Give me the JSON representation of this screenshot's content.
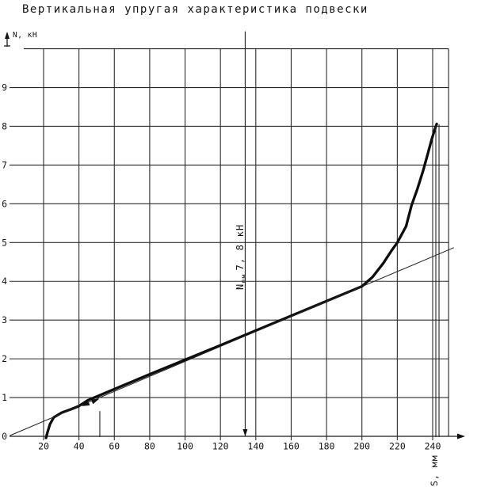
{
  "colors": {
    "ink": "#141414",
    "background": "#ffffff"
  },
  "chart_data": {
    "type": "line",
    "title": "Вертикальная   упругая характеристика подвески",
    "xlabel": "S, мм",
    "ylabel": "N, кН",
    "xlim": [
      0,
      250
    ],
    "ylim": [
      0,
      10
    ],
    "grid": true,
    "x_ticks": [
      20,
      40,
      60,
      80,
      100,
      120,
      140,
      160,
      180,
      200,
      220,
      240
    ],
    "y_ticks": [
      0,
      1,
      2,
      3,
      4,
      5,
      6,
      7,
      8,
      9
    ],
    "series": [
      {
        "name": "elastic-characteristic",
        "style": "thick",
        "points": [
          [
            21.4,
            -0.04
          ],
          [
            22.2,
            0.1
          ],
          [
            23.6,
            0.31
          ],
          [
            25.8,
            0.49
          ],
          [
            30.3,
            0.61
          ],
          [
            35.7,
            0.7
          ],
          [
            40,
            0.78
          ],
          [
            45,
            0.93
          ],
          [
            80,
            1.6
          ],
          [
            120,
            2.35
          ],
          [
            160,
            3.11
          ],
          [
            200,
            3.87
          ],
          [
            206,
            4.11
          ],
          [
            212,
            4.46
          ],
          [
            217,
            4.81
          ],
          [
            220,
            5.0
          ],
          [
            225,
            5.42
          ],
          [
            228,
            5.95
          ],
          [
            231.5,
            6.4
          ],
          [
            234.6,
            6.85
          ],
          [
            237.3,
            7.3
          ],
          [
            239.5,
            7.67
          ],
          [
            241.3,
            7.93
          ],
          [
            242.3,
            8.06
          ]
        ]
      },
      {
        "name": "linear-characteristic",
        "style": "thin",
        "points": [
          [
            1,
            0.02
          ],
          [
            252,
            4.87
          ]
        ]
      }
    ],
    "annotation_label": {
      "symbol": "N",
      "subscript": "пм",
      "value": "7, 8 кН"
    },
    "annotations": [
      {
        "kind": "vline",
        "name": "load-reference-line",
        "s_mm": 134,
        "n_from": 0.0,
        "n_to": 10.45,
        "arrow_down": true
      },
      {
        "kind": "vline",
        "name": "grid-right-border",
        "s_mm": 249,
        "n_from": 0.0,
        "n_to": 10.0
      },
      {
        "kind": "vline",
        "name": "max-travel-marker-1",
        "s_mm": 241.8,
        "n_from": -0.02,
        "n_to": 8.05
      },
      {
        "kind": "vline",
        "name": "max-travel-marker-2",
        "s_mm": 243.6,
        "n_from": -0.02,
        "n_to": 8.05
      },
      {
        "kind": "vline",
        "name": "static-deflection-tick",
        "s_mm": 51.8,
        "n_from": -0.02,
        "n_to": 0.65
      },
      {
        "kind": "arrow",
        "name": "loading-direction-arrow",
        "s_mm": 51.5,
        "n_kn": 0.97,
        "angle_deg": -23
      },
      {
        "kind": "arrow",
        "name": "unloading-direction-arrow",
        "s_mm": 41.5,
        "n_kn": 0.78,
        "angle_deg": 157
      }
    ]
  }
}
